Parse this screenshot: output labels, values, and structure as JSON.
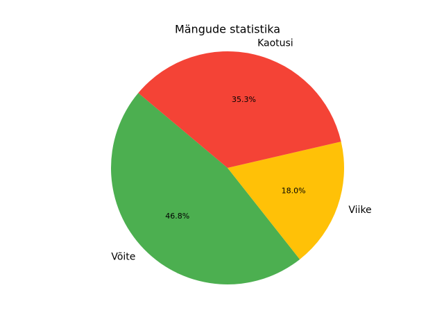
{
  "chart_data": {
    "type": "pie",
    "title": "Mängude statistika",
    "categories": [
      "Võite",
      "Viike",
      "Kaotusi"
    ],
    "values": [
      46.8,
      18.0,
      35.3
    ],
    "value_labels": [
      "46.8%",
      "18.0%",
      "35.3%"
    ],
    "colors": [
      "#4caf50",
      "#ffc107",
      "#f44336"
    ]
  }
}
